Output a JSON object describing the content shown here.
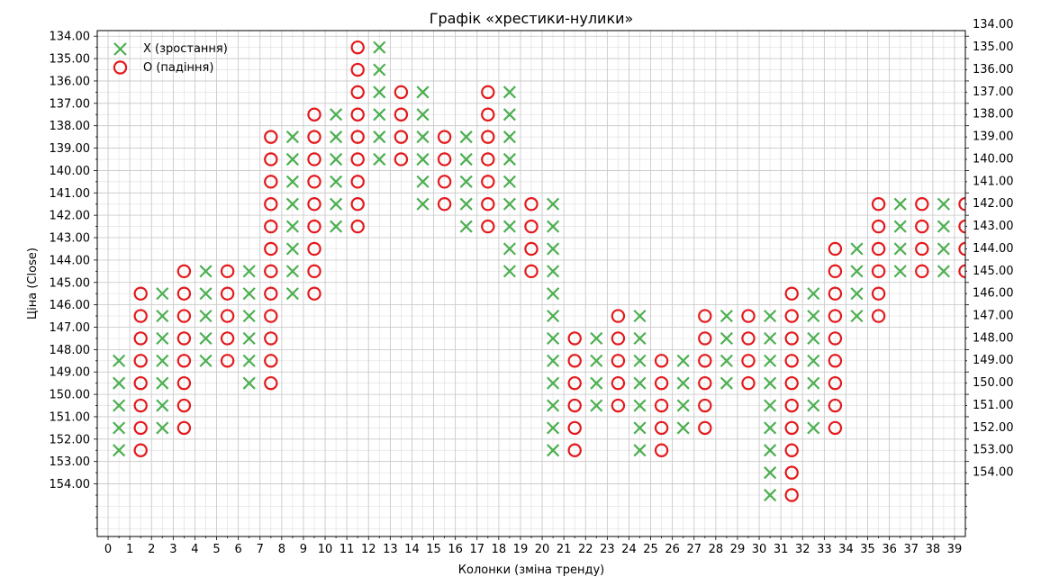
{
  "chart_data": {
    "type": "point-and-figure",
    "title": "Графік «хрестики-нулики»",
    "xlabel": "Колонки (зміна тренду)",
    "ylabel": "Ціна (Close)",
    "x_ticks": [
      0,
      1,
      2,
      3,
      4,
      5,
      6,
      7,
      8,
      9,
      10,
      11,
      12,
      13,
      14,
      15,
      16,
      17,
      18,
      19,
      20,
      21,
      22,
      23,
      24,
      25,
      26,
      27,
      28,
      29,
      30,
      31,
      32,
      33,
      34,
      35,
      36,
      37,
      38,
      39
    ],
    "left_y_ticks": [
      "134.00",
      "135.00",
      "136.00",
      "137.00",
      "138.00",
      "139.00",
      "140.00",
      "141.00",
      "142.00",
      "143.00",
      "144.00",
      "145.00",
      "146.00",
      "147.00",
      "148.00",
      "149.00",
      "150.00",
      "151.00",
      "152.00",
      "153.00",
      "154.00"
    ],
    "right_y_ticks": [
      "134.00",
      "135.00",
      "136.00",
      "137.00",
      "138.00",
      "139.00",
      "140.00",
      "141.00",
      "142.00",
      "143.00",
      "144.00",
      "145.00",
      "146.00",
      "147.00",
      "148.00",
      "149.00",
      "150.00",
      "151.00",
      "152.00",
      "153.00",
      "154.00"
    ],
    "grid": true,
    "legend_position": "top-left",
    "legend": [
      {
        "label": "X (зростання)",
        "marker": "x",
        "color": "#4caf50"
      },
      {
        "label": "O (падіння)",
        "marker": "o",
        "color": "#e31a1c"
      }
    ],
    "columns": [
      {
        "x": 0.5,
        "type": "X",
        "levels": [
          148.5,
          149.5,
          150.5,
          151.5,
          152.5
        ]
      },
      {
        "x": 1.5,
        "type": "O",
        "levels": [
          145.5,
          146.5,
          147.5,
          148.5,
          149.5,
          150.5,
          151.5,
          152.5
        ]
      },
      {
        "x": 2.5,
        "type": "X",
        "levels": [
          145.5,
          146.5,
          147.5,
          148.5,
          149.5,
          150.5,
          151.5
        ]
      },
      {
        "x": 3.5,
        "type": "O",
        "levels": [
          144.5,
          145.5,
          146.5,
          147.5,
          148.5,
          149.5,
          150.5,
          151.5
        ]
      },
      {
        "x": 4.5,
        "type": "X",
        "levels": [
          144.5,
          145.5,
          146.5,
          147.5,
          148.5
        ]
      },
      {
        "x": 5.5,
        "type": "O",
        "levels": [
          144.5,
          145.5,
          146.5,
          147.5,
          148.5
        ]
      },
      {
        "x": 6.5,
        "type": "X",
        "levels": [
          144.5,
          145.5,
          146.5,
          147.5,
          148.5,
          149.5
        ]
      },
      {
        "x": 7.5,
        "type": "O",
        "levels": [
          138.5,
          139.5,
          140.5,
          141.5,
          142.5,
          143.5,
          144.5,
          145.5,
          146.5,
          147.5,
          148.5,
          149.5
        ]
      },
      {
        "x": 8.5,
        "type": "X",
        "levels": [
          138.5,
          139.5,
          140.5,
          141.5,
          142.5,
          143.5,
          144.5,
          145.5
        ]
      },
      {
        "x": 9.5,
        "type": "O",
        "levels": [
          137.5,
          138.5,
          139.5,
          140.5,
          141.5,
          142.5,
          143.5,
          144.5,
          145.5
        ]
      },
      {
        "x": 10.5,
        "type": "X",
        "levels": [
          137.5,
          138.5,
          139.5,
          140.5,
          141.5,
          142.5
        ]
      },
      {
        "x": 11.5,
        "type": "O",
        "levels": [
          134.5,
          135.5,
          136.5,
          137.5,
          138.5,
          139.5,
          140.5,
          141.5,
          142.5
        ]
      },
      {
        "x": 12.5,
        "type": "X",
        "levels": [
          134.5,
          135.5,
          136.5,
          137.5,
          138.5,
          139.5
        ]
      },
      {
        "x": 13.5,
        "type": "O",
        "levels": [
          136.5,
          137.5,
          138.5,
          139.5
        ]
      },
      {
        "x": 14.5,
        "type": "X",
        "levels": [
          136.5,
          137.5,
          138.5,
          139.5,
          140.5,
          141.5
        ]
      },
      {
        "x": 15.5,
        "type": "O",
        "levels": [
          138.5,
          139.5,
          140.5,
          141.5
        ]
      },
      {
        "x": 16.5,
        "type": "X",
        "levels": [
          138.5,
          139.5,
          140.5,
          141.5,
          142.5
        ]
      },
      {
        "x": 17.5,
        "type": "O",
        "levels": [
          136.5,
          137.5,
          138.5,
          139.5,
          140.5,
          141.5,
          142.5
        ]
      },
      {
        "x": 18.5,
        "type": "X",
        "levels": [
          136.5,
          137.5,
          138.5,
          139.5,
          140.5,
          141.5,
          142.5,
          143.5,
          144.5
        ]
      },
      {
        "x": 19.5,
        "type": "O",
        "levels": [
          141.5,
          142.5,
          143.5,
          144.5
        ]
      },
      {
        "x": 20.5,
        "type": "X",
        "levels": [
          141.5,
          142.5,
          143.5,
          144.5,
          145.5,
          146.5,
          147.5,
          148.5,
          149.5,
          150.5,
          151.5,
          152.5
        ]
      },
      {
        "x": 21.5,
        "type": "O",
        "levels": [
          147.5,
          148.5,
          149.5,
          150.5,
          151.5,
          152.5
        ]
      },
      {
        "x": 22.5,
        "type": "X",
        "levels": [
          147.5,
          148.5,
          149.5,
          150.5
        ]
      },
      {
        "x": 23.5,
        "type": "O",
        "levels": [
          146.5,
          147.5,
          148.5,
          149.5,
          150.5
        ]
      },
      {
        "x": 24.5,
        "type": "X",
        "levels": [
          146.5,
          147.5,
          148.5,
          149.5,
          150.5,
          151.5,
          152.5
        ]
      },
      {
        "x": 25.5,
        "type": "O",
        "levels": [
          148.5,
          149.5,
          150.5,
          151.5,
          152.5
        ]
      },
      {
        "x": 26.5,
        "type": "X",
        "levels": [
          148.5,
          149.5,
          150.5,
          151.5
        ]
      },
      {
        "x": 27.5,
        "type": "O",
        "levels": [
          146.5,
          147.5,
          148.5,
          149.5,
          150.5,
          151.5
        ]
      },
      {
        "x": 28.5,
        "type": "X",
        "levels": [
          146.5,
          147.5,
          148.5,
          149.5
        ]
      },
      {
        "x": 29.5,
        "type": "O",
        "levels": [
          146.5,
          147.5,
          148.5,
          149.5
        ]
      },
      {
        "x": 30.5,
        "type": "X",
        "levels": [
          146.5,
          147.5,
          148.5,
          149.5,
          150.5,
          151.5,
          152.5,
          153.5,
          154.5
        ]
      },
      {
        "x": 31.5,
        "type": "O",
        "levels": [
          145.5,
          146.5,
          147.5,
          148.5,
          149.5,
          150.5,
          151.5,
          152.5,
          153.5,
          154.5
        ]
      },
      {
        "x": 32.5,
        "type": "X",
        "levels": [
          145.5,
          146.5,
          147.5,
          148.5,
          149.5,
          150.5,
          151.5
        ]
      },
      {
        "x": 33.5,
        "type": "O",
        "levels": [
          143.5,
          144.5,
          145.5,
          146.5,
          147.5,
          148.5,
          149.5,
          150.5,
          151.5
        ]
      },
      {
        "x": 34.5,
        "type": "X",
        "levels": [
          143.5,
          144.5,
          145.5,
          146.5
        ]
      },
      {
        "x": 35.5,
        "type": "O",
        "levels": [
          141.5,
          142.5,
          143.5,
          144.5,
          145.5,
          146.5
        ]
      },
      {
        "x": 36.5,
        "type": "X",
        "levels": [
          141.5,
          142.5,
          143.5,
          144.5
        ]
      },
      {
        "x": 37.5,
        "type": "O",
        "levels": [
          141.5,
          142.5,
          143.5,
          144.5
        ]
      },
      {
        "x": 38.5,
        "type": "X",
        "levels": [
          141.5,
          142.5,
          143.5,
          144.5
        ]
      },
      {
        "x": 39.5,
        "type": "O",
        "levels": [
          141.5,
          142.5,
          143.5,
          144.5
        ]
      }
    ]
  }
}
